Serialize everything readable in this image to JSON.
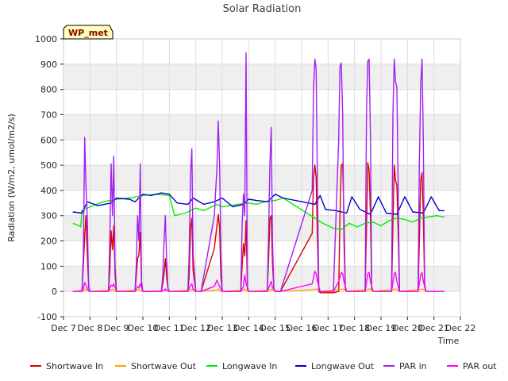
{
  "chart_data": {
    "type": "line",
    "title": "Solar Radiation",
    "xlabel": "Time",
    "ylabel": "Radiation (W/m2, umol/m2/s)",
    "site_tag": "WP_met",
    "xlim": [
      7,
      22
    ],
    "ylim": [
      -100,
      1000
    ],
    "y_ticks": [
      -100,
      0,
      100,
      200,
      300,
      400,
      500,
      600,
      700,
      800,
      900,
      1000
    ],
    "x_ticks": [
      7,
      8,
      9,
      10,
      11,
      12,
      13,
      14,
      15,
      16,
      17,
      18,
      19,
      20,
      21,
      22
    ],
    "x_tick_labels": [
      "Dec 7",
      "Dec 8",
      "Dec 9",
      "Dec 10",
      "Dec 11",
      "Dec 12",
      "Dec 13",
      "Dec 14",
      "Dec 15",
      "Dec 16",
      "Dec 17",
      "Dec 18",
      "Dec 19",
      "Dec 20",
      "Dec 21",
      "Dec 22"
    ],
    "grid": true,
    "legend_position": "bottom",
    "series": [
      {
        "name": "Shortwave In",
        "color": "#dd0000",
        "x": [
          7.35,
          7.7,
          7.75,
          7.8,
          7.85,
          7.9,
          7.95,
          8.0,
          8.2,
          8.7,
          8.75,
          8.8,
          8.85,
          8.9,
          8.95,
          9.0,
          9.2,
          9.7,
          9.75,
          9.8,
          9.85,
          9.9,
          9.95,
          10.0,
          10.2,
          10.7,
          10.75,
          10.8,
          10.85,
          10.9,
          10.95,
          11.0,
          11.2,
          11.7,
          11.75,
          11.8,
          11.85,
          11.9,
          12.0,
          12.2,
          12.7,
          12.8,
          12.85,
          12.9,
          12.95,
          13.0,
          13.2,
          13.7,
          13.75,
          13.8,
          13.85,
          13.9,
          13.95,
          14.0,
          14.2,
          14.7,
          14.75,
          14.8,
          14.85,
          14.9,
          14.95,
          15.0,
          15.2,
          16.4,
          16.45,
          16.5,
          16.55,
          16.6,
          16.65,
          16.7,
          16.8,
          17.2,
          17.4,
          17.45,
          17.5,
          17.55,
          17.6,
          17.65,
          17.7,
          17.9,
          18.4,
          18.45,
          18.5,
          18.55,
          18.6,
          18.65,
          18.7,
          18.9,
          19.4,
          19.45,
          19.5,
          19.55,
          19.6,
          19.65,
          19.7,
          19.9,
          20.4,
          20.45,
          20.5,
          20.55,
          20.6,
          20.65,
          20.7,
          20.9,
          21.4
        ],
        "y": [
          0,
          0,
          100,
          220,
          300,
          140,
          20,
          0,
          0,
          0,
          80,
          240,
          165,
          260,
          60,
          0,
          0,
          0,
          60,
          130,
          145,
          235,
          30,
          0,
          0,
          0,
          30,
          70,
          130,
          55,
          10,
          0,
          0,
          0,
          60,
          250,
          290,
          80,
          0,
          0,
          170,
          260,
          305,
          250,
          60,
          0,
          0,
          0,
          100,
          190,
          140,
          280,
          10,
          0,
          0,
          0,
          120,
          290,
          300,
          110,
          10,
          0,
          0,
          230,
          450,
          500,
          450,
          200,
          0,
          -5,
          -5,
          -5,
          0,
          300,
          500,
          505,
          310,
          20,
          0,
          0,
          0,
          250,
          510,
          480,
          300,
          10,
          0,
          0,
          0,
          260,
          500,
          440,
          420,
          230,
          0,
          0,
          0,
          200,
          440,
          470,
          300,
          20,
          0,
          0,
          0
        ]
      },
      {
        "name": "Shortwave Out",
        "color": "#ffa500",
        "x": [
          7.35,
          7.8,
          7.85,
          7.9,
          8.0,
          8.8,
          8.85,
          8.9,
          9.0,
          9.8,
          9.85,
          9.9,
          10.0,
          10.8,
          10.85,
          10.9,
          11.0,
          11.8,
          11.85,
          11.9,
          12.0,
          12.8,
          12.85,
          12.9,
          13.0,
          13.8,
          13.85,
          13.9,
          14.0,
          14.8,
          14.85,
          14.9,
          15.2,
          16.5,
          16.55,
          16.6,
          16.7,
          17.5,
          17.55,
          17.6,
          17.7,
          18.5,
          18.55,
          18.6,
          18.7,
          19.5,
          19.55,
          19.6,
          19.7,
          20.5,
          20.55,
          20.6,
          20.7,
          21.4
        ],
        "y": [
          0,
          5,
          10,
          5,
          0,
          5,
          10,
          5,
          0,
          5,
          10,
          5,
          0,
          3,
          5,
          3,
          0,
          5,
          10,
          5,
          0,
          5,
          10,
          5,
          0,
          5,
          10,
          5,
          0,
          5,
          10,
          5,
          0,
          8,
          10,
          8,
          0,
          8,
          10,
          8,
          0,
          8,
          10,
          8,
          0,
          8,
          10,
          8,
          0,
          8,
          10,
          8,
          0,
          0
        ]
      },
      {
        "name": "Longwave In",
        "color": "#00ee00",
        "x": [
          7.35,
          7.6,
          7.65,
          7.7,
          8.0,
          8.5,
          9.0,
          9.5,
          10.0,
          10.5,
          11.0,
          11.2,
          11.4,
          11.6,
          11.8,
          12.0,
          12.3,
          12.6,
          12.8,
          13.0,
          13.3,
          13.6,
          14.0,
          14.3,
          14.6,
          15.0,
          15.3,
          16.5,
          16.8,
          17.2,
          17.5,
          17.8,
          18.1,
          18.4,
          18.7,
          19.0,
          19.3,
          19.6,
          19.9,
          20.2,
          20.5,
          20.8,
          21.1,
          21.4
        ],
        "y": [
          270,
          260,
          255,
          320,
          335,
          355,
          365,
          370,
          380,
          385,
          380,
          300,
          305,
          310,
          320,
          330,
          320,
          335,
          345,
          335,
          340,
          345,
          350,
          345,
          355,
          360,
          370,
          290,
          270,
          250,
          245,
          270,
          255,
          270,
          275,
          260,
          280,
          290,
          285,
          275,
          290,
          295,
          300,
          295
        ]
      },
      {
        "name": "Longwave Out",
        "color": "#0000cc",
        "x": [
          7.35,
          7.7,
          7.9,
          8.3,
          8.8,
          9.0,
          9.5,
          9.7,
          10.0,
          10.3,
          10.7,
          11.0,
          11.3,
          11.7,
          11.9,
          12.3,
          12.7,
          13.0,
          13.4,
          13.8,
          14.0,
          14.3,
          14.7,
          15.0,
          15.3,
          16.5,
          16.7,
          16.9,
          17.3,
          17.7,
          17.9,
          18.2,
          18.6,
          18.9,
          19.2,
          19.6,
          19.9,
          20.2,
          20.6,
          20.9,
          21.2,
          21.4
        ],
        "y": [
          315,
          310,
          355,
          340,
          350,
          370,
          365,
          355,
          385,
          380,
          390,
          385,
          350,
          345,
          370,
          345,
          355,
          370,
          335,
          345,
          365,
          360,
          355,
          385,
          370,
          345,
          380,
          325,
          320,
          310,
          375,
          325,
          305,
          375,
          310,
          305,
          375,
          315,
          310,
          375,
          320,
          320
        ]
      },
      {
        "name": "PAR in",
        "color": "#a020f0",
        "x": [
          7.35,
          7.7,
          7.75,
          7.8,
          7.85,
          7.9,
          7.95,
          8.0,
          8.2,
          8.7,
          8.75,
          8.8,
          8.85,
          8.9,
          8.95,
          9.0,
          9.2,
          9.7,
          9.75,
          9.8,
          9.85,
          9.9,
          9.95,
          10.0,
          10.2,
          10.7,
          10.75,
          10.8,
          10.85,
          10.9,
          10.95,
          11.0,
          11.2,
          11.7,
          11.75,
          11.8,
          11.85,
          11.9,
          12.0,
          12.2,
          12.7,
          12.8,
          12.85,
          12.9,
          12.95,
          13.0,
          13.2,
          13.7,
          13.75,
          13.8,
          13.85,
          13.9,
          13.95,
          14.0,
          14.2,
          14.7,
          14.75,
          14.8,
          14.85,
          14.9,
          14.95,
          15.0,
          15.2,
          16.4,
          16.45,
          16.5,
          16.55,
          16.6,
          16.65,
          16.7,
          16.8,
          17.2,
          17.4,
          17.45,
          17.5,
          17.55,
          17.6,
          17.65,
          17.7,
          17.9,
          18.4,
          18.45,
          18.5,
          18.55,
          18.6,
          18.65,
          18.7,
          18.9,
          19.4,
          19.45,
          19.5,
          19.55,
          19.6,
          19.65,
          19.7,
          19.9,
          20.4,
          20.45,
          20.5,
          20.55,
          20.6,
          20.65,
          20.7,
          20.9,
          21.4
        ],
        "y": [
          0,
          0,
          150,
          610,
          420,
          290,
          20,
          0,
          0,
          0,
          200,
          505,
          300,
          535,
          100,
          0,
          0,
          0,
          100,
          300,
          200,
          505,
          40,
          0,
          0,
          0,
          60,
          200,
          300,
          120,
          10,
          0,
          0,
          0,
          150,
          460,
          565,
          150,
          0,
          0,
          300,
          490,
          675,
          500,
          150,
          0,
          0,
          0,
          260,
          385,
          300,
          945,
          20,
          0,
          0,
          0,
          220,
          500,
          650,
          200,
          10,
          0,
          0,
          400,
          800,
          920,
          880,
          400,
          0,
          0,
          0,
          0,
          600,
          890,
          905,
          700,
          200,
          10,
          0,
          0,
          0,
          700,
          910,
          920,
          620,
          20,
          0,
          0,
          0,
          700,
          920,
          830,
          810,
          400,
          0,
          0,
          0,
          500,
          820,
          920,
          600,
          30,
          0,
          0,
          0
        ]
      },
      {
        "name": "PAR out",
        "color": "#ff00ff",
        "x": [
          7.35,
          7.7,
          7.75,
          7.8,
          7.85,
          7.9,
          7.95,
          8.0,
          8.2,
          8.7,
          8.8,
          8.85,
          8.9,
          9.0,
          9.2,
          9.7,
          9.8,
          9.85,
          9.9,
          10.0,
          10.2,
          10.7,
          10.8,
          10.85,
          10.9,
          11.0,
          11.2,
          11.7,
          11.8,
          11.85,
          11.9,
          12.0,
          12.2,
          12.7,
          12.8,
          12.85,
          12.9,
          13.0,
          13.2,
          13.7,
          13.8,
          13.85,
          13.9,
          14.0,
          14.2,
          14.7,
          14.8,
          14.85,
          14.9,
          15.0,
          15.2,
          16.4,
          16.5,
          16.55,
          16.6,
          16.7,
          16.8,
          17.2,
          17.4,
          17.5,
          17.55,
          17.6,
          17.7,
          17.9,
          18.4,
          18.5,
          18.55,
          18.6,
          18.7,
          18.9,
          19.4,
          19.5,
          19.55,
          19.6,
          19.7,
          19.9,
          20.4,
          20.5,
          20.55,
          20.6,
          20.7,
          20.9,
          21.4
        ],
        "y": [
          0,
          0,
          10,
          35,
          25,
          15,
          2,
          0,
          0,
          0,
          25,
          20,
          30,
          0,
          0,
          0,
          20,
          15,
          30,
          0,
          0,
          0,
          5,
          10,
          5,
          0,
          0,
          0,
          25,
          30,
          10,
          0,
          0,
          20,
          45,
          30,
          20,
          0,
          0,
          0,
          20,
          65,
          30,
          0,
          0,
          0,
          25,
          40,
          15,
          0,
          0,
          30,
          80,
          70,
          40,
          0,
          0,
          0,
          40,
          75,
          70,
          40,
          0,
          0,
          0,
          70,
          75,
          40,
          0,
          0,
          0,
          70,
          75,
          40,
          0,
          0,
          0,
          65,
          75,
          40,
          0,
          0,
          0
        ]
      }
    ]
  }
}
